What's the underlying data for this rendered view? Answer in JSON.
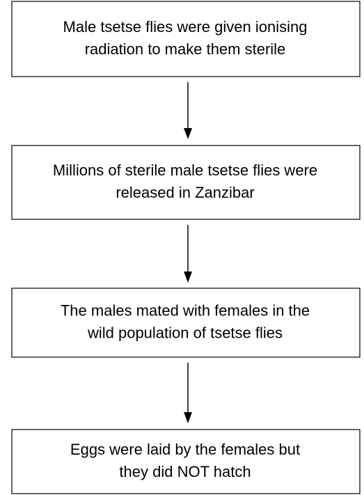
{
  "nodes": [
    {
      "lines": [
        "Male tsetse flies were given ionising",
        "radiation to make them sterile"
      ]
    },
    {
      "lines": [
        "Millions of sterile male tsetse flies were",
        "released in Zanzibar"
      ]
    },
    {
      "lines": [
        "The males mated with females in the",
        "wild population of tsetse flies"
      ]
    },
    {
      "lines": [
        "Eggs were laid by the females but",
        "they did NOT hatch"
      ]
    }
  ]
}
